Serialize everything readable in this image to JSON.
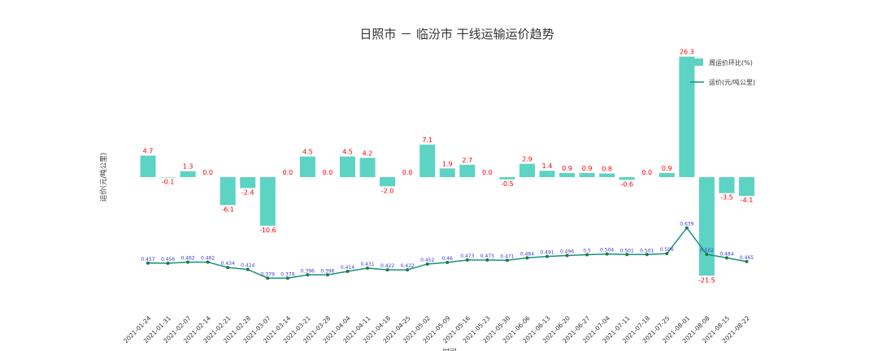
{
  "chart_data": {
    "type": "bar",
    "title": "日照市 － 临汾市  干线运输运价趋势",
    "xlabel": "时间",
    "ylabel": "运价(元/吨公里)",
    "categories": [
      "2021-01-24",
      "2021-01-31",
      "2021-02-07",
      "2021-02-14",
      "2021-02-21",
      "2021-02-28",
      "2021-03-07",
      "2021-03-14",
      "2021-03-21",
      "2021-03-28",
      "2021-04-04",
      "2021-04-11",
      "2021-04-18",
      "2021-04-25",
      "2021-05-02",
      "2021-05-09",
      "2021-05-16",
      "2021-05-23",
      "2021-05-30",
      "2021-06-06",
      "2021-06-13",
      "2021-06-20",
      "2021-06-27",
      "2021-07-04",
      "2021-07-11",
      "2021-07-18",
      "2021-07-25",
      "2021-08-01",
      "2021-08-08",
      "2021-08-15",
      "2021-08-22"
    ],
    "series": [
      {
        "name": "周运价环比(%)",
        "type": "bar",
        "color": "#5dd3c4",
        "values": [
          4.7,
          -0.1,
          1.3,
          0.0,
          -6.1,
          -2.4,
          -10.6,
          0.0,
          4.5,
          0.0,
          4.5,
          4.2,
          -2.0,
          0.0,
          7.1,
          1.9,
          2.7,
          0.0,
          -0.5,
          2.9,
          1.4,
          0.9,
          0.9,
          0.8,
          -0.6,
          0.0,
          0.9,
          26.3,
          -21.5,
          -3.5,
          -4.1
        ],
        "labels": [
          "4.7",
          "-0.1",
          "1.3",
          "0.0",
          "-6.1",
          "-2.4",
          "-10.6",
          "0.0",
          "4.5",
          "0.0",
          "4.5",
          "4.2",
          "-2.0",
          "0.0",
          "7.1",
          "1.9",
          "2.7",
          "0.0",
          "-0.5",
          "2.9",
          "1.4",
          "0.9",
          "0.9",
          "0.8",
          "-0.6",
          "0.0",
          "0.9",
          "26.3",
          "-21.5",
          "-3.5",
          "-4.1"
        ]
      },
      {
        "name": "运价(元/吨公里)",
        "type": "line",
        "color": "#1a9080",
        "point_color": "#1f7a3a",
        "label_color": "#3b3bd6",
        "values": [
          0.457,
          0.456,
          0.462,
          0.462,
          0.434,
          0.424,
          0.379,
          0.379,
          0.396,
          0.396,
          0.414,
          0.431,
          0.422,
          0.422,
          0.452,
          0.46,
          0.473,
          0.473,
          0.471,
          0.484,
          0.491,
          0.496,
          0.5,
          0.504,
          0.501,
          0.501,
          0.506,
          0.639,
          0.502,
          0.484,
          0.465
        ],
        "labels": [
          "0.457",
          "0.456",
          "0.462",
          "0.462",
          "0.434",
          "0.424",
          "0.379",
          "0.379",
          "0.396",
          "0.396",
          "0.414",
          "0.431",
          "0.422",
          "0.422",
          "0.452",
          "0.46",
          "0.473",
          "0.473",
          "0.471",
          "0.484",
          "0.491",
          "0.496",
          "0.5",
          "0.504",
          "0.501",
          "0.501",
          "0.506",
          "0.639",
          "0.502",
          "0.484",
          "0.465"
        ]
      }
    ],
    "legend_position": "top-right",
    "grid": false
  }
}
